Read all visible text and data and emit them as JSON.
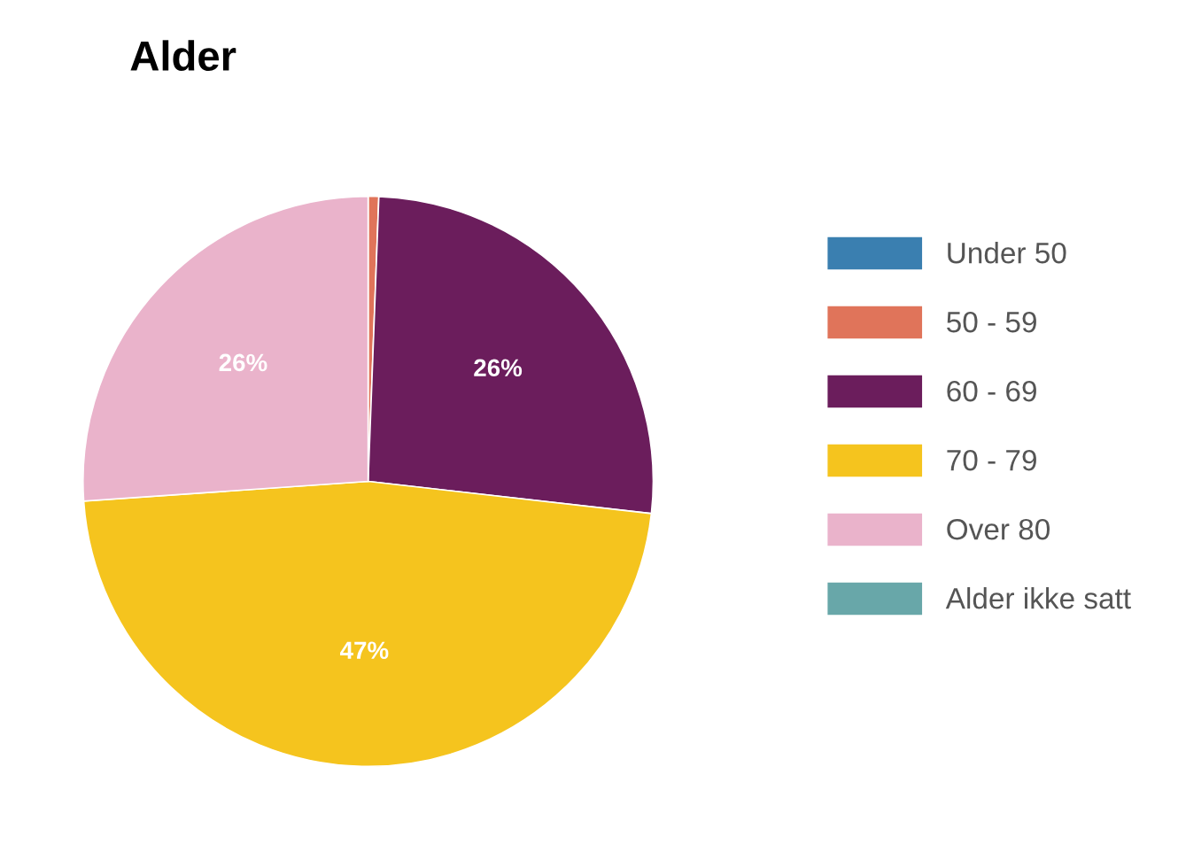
{
  "chart_data": {
    "type": "pie",
    "title": "Alder",
    "categories": [
      "Under 50",
      "50 - 59",
      "60 - 69",
      "70 - 79",
      "Over 80",
      "Alder ikke satt"
    ],
    "values": [
      0,
      0.6,
      26.2,
      47.1,
      26.1,
      0
    ],
    "colors": [
      "#3a7fb0",
      "#e0745a",
      "#6b1d5c",
      "#f5c41e",
      "#eab3cb",
      "#68a7a9"
    ],
    "value_labels": [
      null,
      null,
      "26%",
      "47%",
      "26%",
      null
    ],
    "legend": "right"
  }
}
